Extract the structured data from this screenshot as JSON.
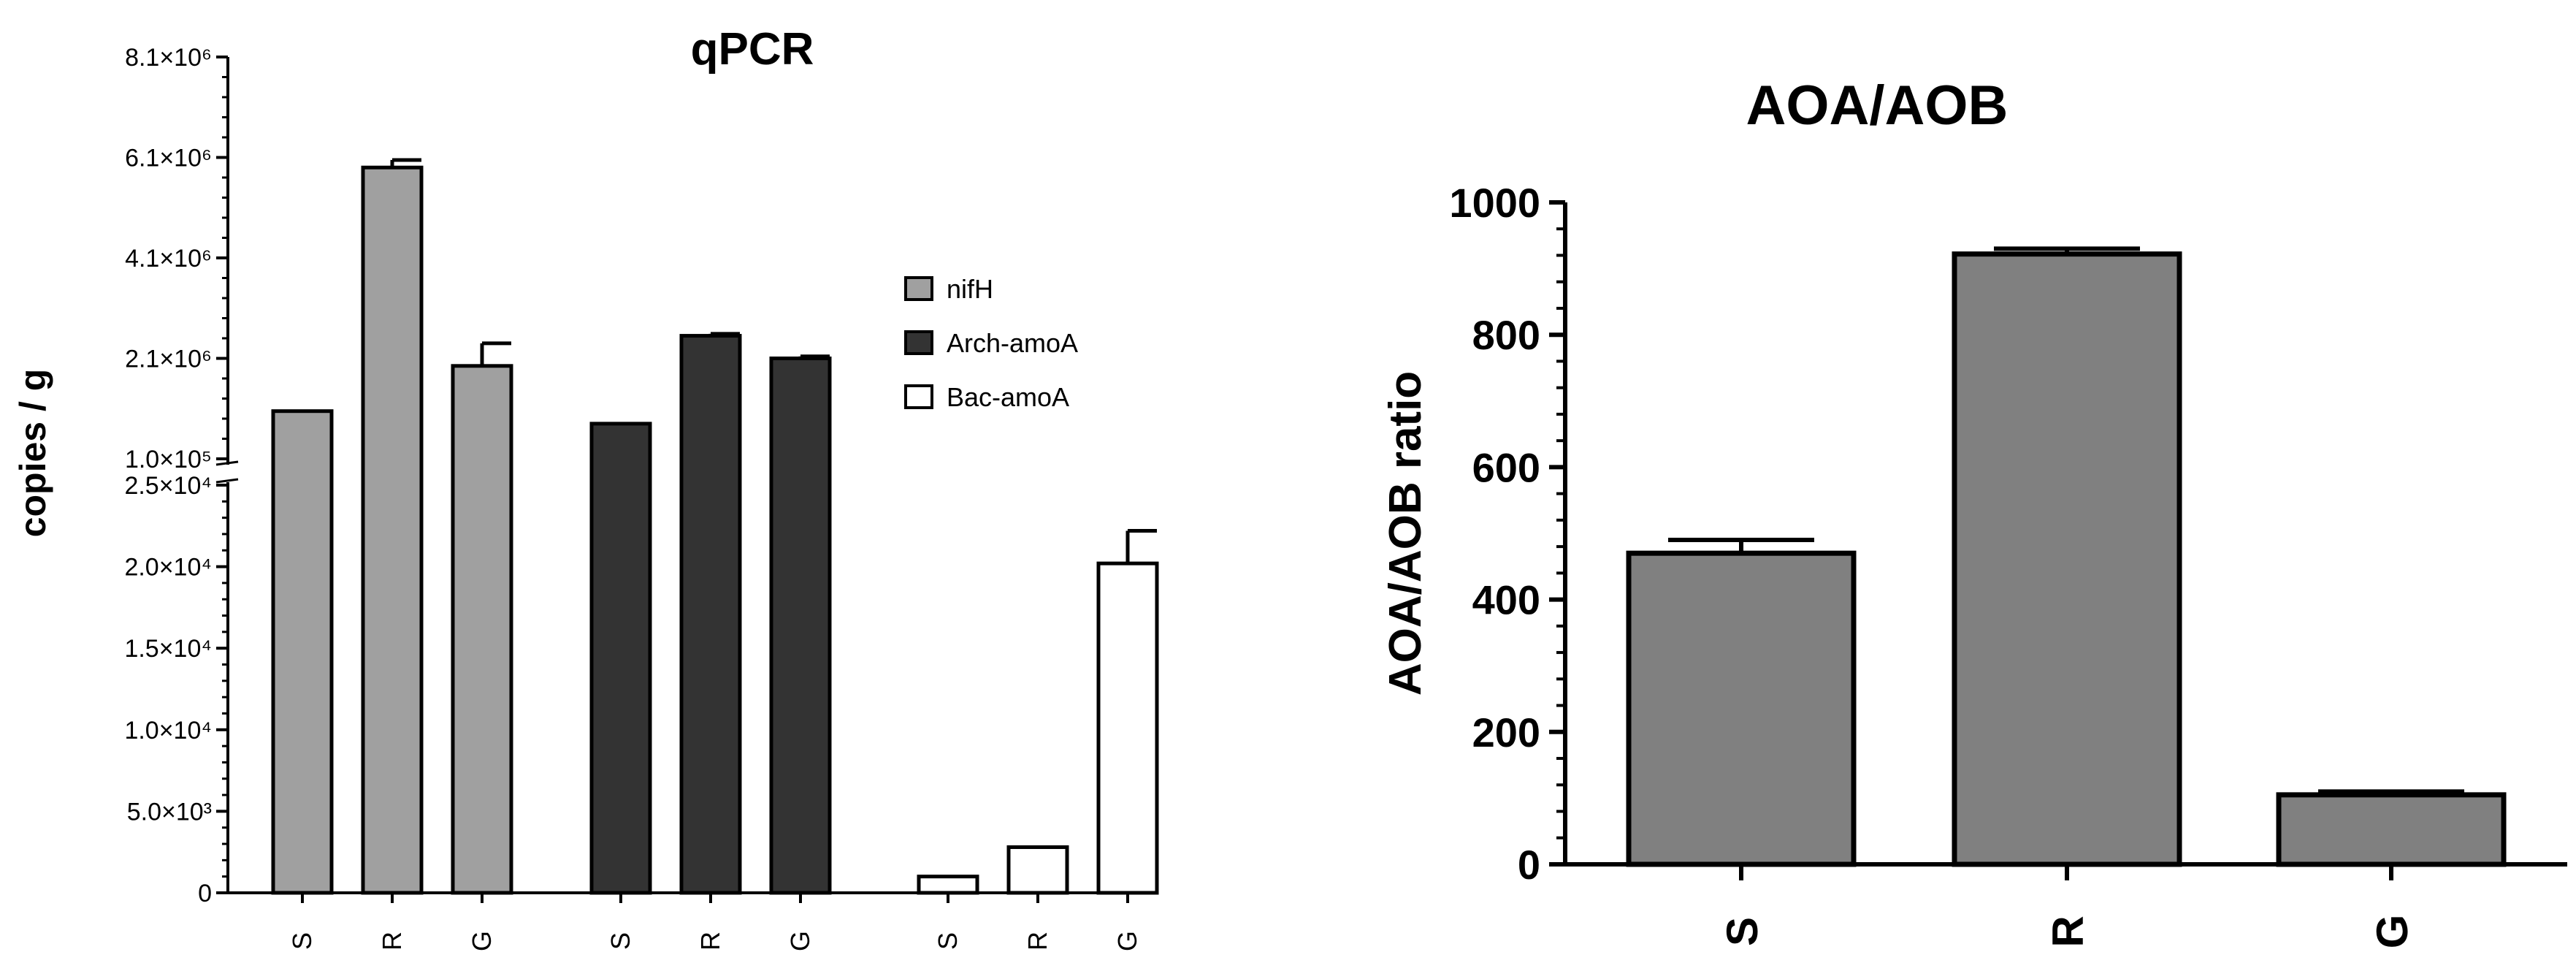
{
  "chart_data": [
    {
      "type": "bar",
      "title": "qPCR",
      "ylabel": "copies / g",
      "xlabel": "",
      "axis_break": true,
      "upper_segment": {
        "ylim": [
          100000,
          8100000
        ],
        "ticks": [
          {
            "value": 100000,
            "label": "1.0×10⁵"
          },
          {
            "value": 2100000,
            "label": "2.1×10⁶"
          },
          {
            "value": 4100000,
            "label": "4.1×10⁶"
          },
          {
            "value": 6100000,
            "label": "6.1×10⁶"
          },
          {
            "value": 8100000,
            "label": "8.1×10⁶"
          }
        ]
      },
      "lower_segment": {
        "ylim": [
          0,
          25000
        ],
        "ticks": [
          {
            "value": 0,
            "label": "0"
          },
          {
            "value": 5000,
            "label": "5.0×10³"
          },
          {
            "value": 10000,
            "label": "1.0×10⁴"
          },
          {
            "value": 15000,
            "label": "1.5×10⁴"
          },
          {
            "value": 20000,
            "label": "2.0×10⁴"
          },
          {
            "value": 25000,
            "label": "2.5×10⁴"
          }
        ]
      },
      "categories": [
        "S",
        "R",
        "G"
      ],
      "series": [
        {
          "name": "nifH",
          "color": "#a0a0a0",
          "values": [
            1050000,
            5900000,
            1950000
          ],
          "errors": [
            0,
            150000,
            450000
          ]
        },
        {
          "name": "Arch-amoA",
          "color": "#333333",
          "values": [
            800000,
            2550000,
            2100000
          ],
          "errors": [
            0,
            40000,
            40000
          ]
        },
        {
          "name": "Bac-amoA",
          "color": "#ffffff",
          "values": [
            1000,
            2800,
            20200
          ],
          "errors": [
            0,
            0,
            2000
          ]
        }
      ],
      "legend_position": "right"
    },
    {
      "type": "bar",
      "title": "AOA/AOB",
      "ylabel": "AOA/AOB ratio",
      "xlabel": "",
      "ylim": [
        0,
        1000
      ],
      "yticks": [
        0,
        200,
        400,
        600,
        800,
        1000
      ],
      "categories": [
        "S",
        "R",
        "G"
      ],
      "values": [
        470,
        922,
        105
      ],
      "errors": [
        20,
        8,
        5
      ],
      "color": "#808080"
    }
  ]
}
